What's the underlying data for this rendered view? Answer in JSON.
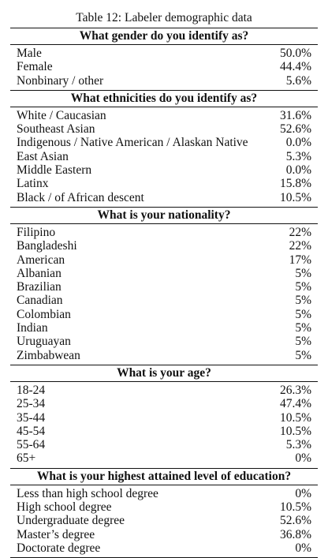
{
  "caption": "Table 12: Labeler demographic data",
  "sections": [
    {
      "header": "What gender do you identify as?",
      "rows": [
        {
          "label": "Male",
          "value": "50.0%"
        },
        {
          "label": "Female",
          "value": "44.4%"
        },
        {
          "label": "Nonbinary / other",
          "value": "5.6%"
        }
      ]
    },
    {
      "header": "What ethnicities do you identify as?",
      "rows": [
        {
          "label": "White / Caucasian",
          "value": "31.6%"
        },
        {
          "label": "Southeast Asian",
          "value": "52.6%"
        },
        {
          "label": "Indigenous / Native American / Alaskan Native",
          "value": "0.0%"
        },
        {
          "label": "East Asian",
          "value": "5.3%"
        },
        {
          "label": "Middle Eastern",
          "value": "0.0%"
        },
        {
          "label": "Latinx",
          "value": "15.8%"
        },
        {
          "label": "Black / of African descent",
          "value": "10.5%"
        }
      ]
    },
    {
      "header": "What is your nationality?",
      "rows": [
        {
          "label": "Filipino",
          "value": "22%"
        },
        {
          "label": "Bangladeshi",
          "value": "22%"
        },
        {
          "label": "American",
          "value": "17%"
        },
        {
          "label": "Albanian",
          "value": "5%"
        },
        {
          "label": "Brazilian",
          "value": "5%"
        },
        {
          "label": "Canadian",
          "value": "5%"
        },
        {
          "label": "Colombian",
          "value": "5%"
        },
        {
          "label": "Indian",
          "value": "5%"
        },
        {
          "label": "Uruguayan",
          "value": "5%"
        },
        {
          "label": "Zimbabwean",
          "value": "5%"
        }
      ]
    },
    {
      "header": "What is your age?",
      "rows": [
        {
          "label": "18-24",
          "value": "26.3%"
        },
        {
          "label": "25-34",
          "value": "47.4%"
        },
        {
          "label": "35-44",
          "value": "10.5%"
        },
        {
          "label": "45-54",
          "value": "10.5%"
        },
        {
          "label": "55-64",
          "value": "5.3%"
        },
        {
          "label": "65+",
          "value": "0%"
        }
      ]
    },
    {
      "header": "What is your highest attained level of education?",
      "rows": [
        {
          "label": "Less than high school degree",
          "value": "0%"
        },
        {
          "label": "High school degree",
          "value": "10.5%"
        },
        {
          "label": "Undergraduate degree",
          "value": "52.6%"
        },
        {
          "label": "Master’s degree",
          "value": "36.8%"
        },
        {
          "label": "Doctorate degree",
          "value": "0%"
        }
      ]
    }
  ]
}
